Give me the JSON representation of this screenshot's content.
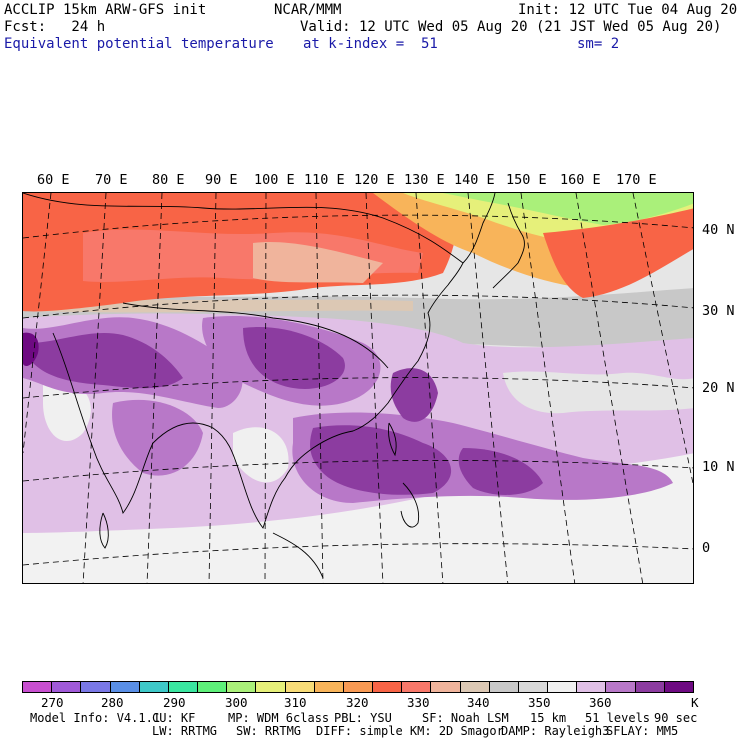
{
  "header": {
    "line1_left": "ACCLIP 15km ARW-GFS init",
    "line1_mid": "NCAR/MMM",
    "line1_right": "Init: 12 UTC Tue 04 Aug 20",
    "line2_left": "Fcst:   24 h",
    "line2_right": "Valid: 12 UTC Wed 05 Aug 20 (21 JST Wed 05 Aug 20)",
    "line3_left": "Equivalent potential temperature",
    "line3_mid": "at k-index =  51",
    "line3_right": "sm= 2"
  },
  "map": {
    "longitude_labels": [
      "60 E",
      "70 E",
      "80 E",
      "90 E",
      "100 E",
      "110 E",
      "120 E",
      "130 E",
      "140 E",
      "150 E",
      "160 E",
      "170 E"
    ],
    "latitude_labels": [
      "40 N",
      "30 N",
      "20 N",
      "10 N",
      "0"
    ]
  },
  "colorbar": {
    "unit": "K",
    "tick_labels": [
      "270",
      "280",
      "290",
      "300",
      "310",
      "320",
      "330",
      "340",
      "350",
      "360"
    ],
    "colors": [
      "#c84fd0",
      "#a05ad8",
      "#7a78e6",
      "#5a8fe6",
      "#3ec8c8",
      "#3ae6a0",
      "#5ef07a",
      "#aaf07a",
      "#e6f07a",
      "#f8dc78",
      "#f8b45a",
      "#f89a54",
      "#f86446",
      "#f8786a",
      "#f0b49c",
      "#dcc8b4",
      "#c8c8c8",
      "#d8d8d8",
      "#f0f0f0",
      "#e0c0e6",
      "#b878c8",
      "#8c3ca0",
      "#6e0a82"
    ]
  },
  "footer": {
    "model_info": "Model Info: V4.1.1",
    "cu": "CU: KF",
    "mp": "MP: WDM 6class",
    "pbl": "PBL: YSU",
    "sf": "SF: Noah LSM",
    "res": "15 km",
    "levels": "51 levels",
    "dt": "90 sec",
    "lw": "LW: RRTMG",
    "sw": "SW: RRTMG",
    "diff": "DIFF: simple KM: 2D Smagor",
    "damp": "DAMP: Rayleigh3",
    "sflay": "SFLAY: MM5"
  }
}
